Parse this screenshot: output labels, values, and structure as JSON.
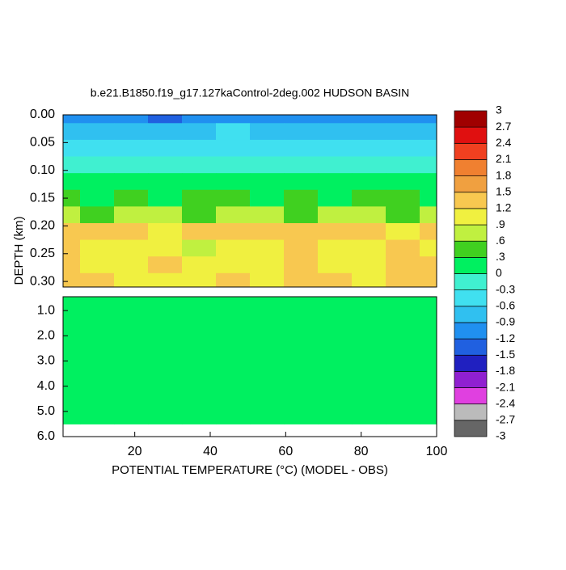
{
  "chart_data": {
    "type": "contour",
    "title": "b.e21.B1850.f19_g17.127kaControl-2deg.002 HUDSON BASIN",
    "xlabel": "POTENTIAL TEMPERATURE (°C) (MODEL - OBS)",
    "ylabel": "DEPTH (km)",
    "x": [
      1,
      10,
      19,
      28,
      37,
      46,
      55,
      64,
      73,
      82,
      91,
      100
    ],
    "xlim": [
      1,
      100
    ],
    "xticks": [
      20,
      40,
      60,
      80,
      100
    ],
    "panels": [
      {
        "ylim": [
          0,
          0.31
        ],
        "yticks": [
          {
            "value": 0,
            "label": "0.00"
          },
          {
            "value": 0.05,
            "label": "0.05"
          },
          {
            "value": 0.1,
            "label": "0.10"
          },
          {
            "value": 0.15,
            "label": "0.15"
          },
          {
            "value": 0.2,
            "label": "0.20"
          },
          {
            "value": 0.25,
            "label": "0.25"
          },
          {
            "value": 0.3,
            "label": "0.30"
          }
        ],
        "depth": [
          0,
          0.03,
          0.06,
          0.09,
          0.12,
          0.15,
          0.18,
          0.21,
          0.24,
          0.27,
          0.3
        ],
        "values": [
          [
            -1.1,
            -1.0,
            -0.9,
            -1.2,
            -1.0,
            -0.9,
            -1.1,
            -1.0,
            -0.9,
            -1.1,
            -1.0,
            -1.0
          ],
          [
            -0.7,
            -0.6,
            -0.6,
            -0.7,
            -0.6,
            -0.5,
            -0.6,
            -0.7,
            -0.6,
            -0.6,
            -0.7,
            -0.6
          ],
          [
            -0.4,
            -0.4,
            -0.3,
            -0.4,
            -0.4,
            -0.3,
            -0.4,
            -0.4,
            -0.4,
            -0.3,
            -0.4,
            -0.4
          ],
          [
            -0.1,
            -0.2,
            -0.1,
            -0.1,
            -0.2,
            -0.1,
            -0.1,
            -0.2,
            -0.1,
            -0.1,
            -0.2,
            -0.1
          ],
          [
            0.2,
            0.1,
            0.2,
            0.2,
            0.1,
            0.2,
            0.2,
            0.1,
            0.2,
            0.2,
            0.1,
            0.2
          ],
          [
            0.4,
            0.3,
            0.4,
            0.3,
            0.4,
            0.4,
            0.3,
            0.4,
            0.3,
            0.4,
            0.4,
            0.3
          ],
          [
            0.7,
            0.6,
            0.7,
            0.7,
            0.6,
            0.7,
            0.7,
            0.6,
            0.7,
            0.7,
            0.6,
            0.7
          ],
          [
            1.3,
            1.4,
            1.3,
            1.2,
            1.3,
            1.4,
            1.3,
            1.3,
            1.4,
            1.3,
            1.2,
            1.3
          ],
          [
            1.3,
            1.1,
            1.0,
            1.2,
            0.9,
            1.1,
            1.2,
            1.3,
            1.1,
            1.0,
            1.3,
            1.2
          ],
          [
            1.4,
            1.2,
            1.0,
            1.3,
            1.0,
            1.2,
            1.1,
            1.4,
            1.2,
            1.0,
            1.4,
            1.3
          ],
          [
            1.5,
            1.3,
            1.1,
            1.2,
            1.1,
            1.3,
            1.2,
            1.4,
            1.3,
            1.1,
            1.5,
            1.4
          ]
        ]
      },
      {
        "ylim": [
          0.45,
          6
        ],
        "yticks": [
          {
            "value": 1,
            "label": "1.0"
          },
          {
            "value": 2,
            "label": "2.0"
          },
          {
            "value": 3,
            "label": "3.0"
          },
          {
            "value": 4,
            "label": "4.0"
          },
          {
            "value": 5,
            "label": "5.0"
          },
          {
            "value": 6,
            "label": "6.0"
          }
        ],
        "depth": [
          0.45,
          1,
          2,
          3,
          4,
          5,
          6
        ],
        "values": [
          [
            0.1,
            0.1,
            0.1,
            0.1,
            0.1,
            0.1,
            0.1,
            0.1,
            0.1,
            0.1,
            0.1,
            0.1
          ],
          [
            0.1,
            0.1,
            0.1,
            0.1,
            0.1,
            0.1,
            0.1,
            0.1,
            0.1,
            0.1,
            0.1,
            0.1
          ],
          [
            0.1,
            0.1,
            0.1,
            0.1,
            0.1,
            0.1,
            0.1,
            0.1,
            0.1,
            0.1,
            0.1,
            0.1
          ],
          [
            0.1,
            0.1,
            0.1,
            0.1,
            0.1,
            0.1,
            0.1,
            0.1,
            0.1,
            0.1,
            0.1,
            0.1
          ],
          [
            0.1,
            0.1,
            0.1,
            0.1,
            0.1,
            0.1,
            0.1,
            0.1,
            0.1,
            0.1,
            0.1,
            0.1
          ],
          [
            0.1,
            0.1,
            0.1,
            0.1,
            0.1,
            0.1,
            0.1,
            0.1,
            0.1,
            0.1,
            0.1,
            0.1
          ],
          [
            null,
            null,
            null,
            null,
            null,
            null,
            null,
            null,
            null,
            null,
            null,
            null
          ]
        ]
      }
    ],
    "colorbar": {
      "ticks": [
        -3,
        -2.7,
        -2.4,
        -2.1,
        -1.8,
        -1.5,
        -1.2,
        -0.9,
        -0.6,
        -0.3,
        0,
        {
          "value": 0.3,
          "label": ".3"
        },
        {
          "value": 0.6,
          "label": ".6"
        },
        {
          "value": 0.9,
          "label": ".9"
        },
        1.2,
        1.5,
        1.8,
        2.1,
        2.4,
        2.7,
        3
      ],
      "colors": [
        "#666666",
        "#bbbbbb",
        "#e040e0",
        "#9020d0",
        "#2020c0",
        "#2060e0",
        "#2090f0",
        "#30c0f0",
        "#40e0f0",
        "#40f0d0",
        "#00f060",
        "#40d020",
        "#c0f040",
        "#f0f040",
        "#f8c850",
        "#f0a040",
        "#f08030",
        "#f04020",
        "#e01010",
        "#a00000"
      ]
    }
  }
}
